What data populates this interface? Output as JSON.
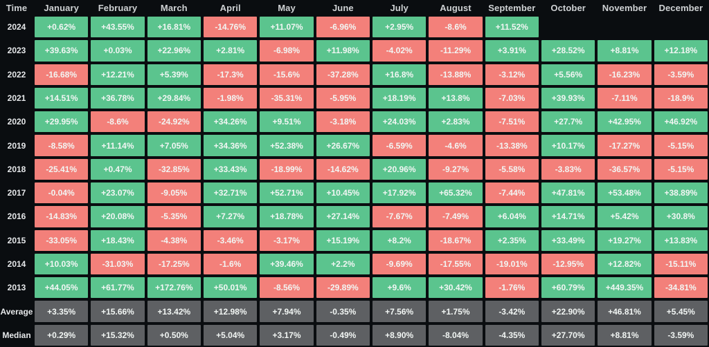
{
  "colors": {
    "background": "#0a0d10",
    "positive": "#5bc48e",
    "negative": "#f3807a",
    "summary": "#5e6063",
    "cell_text": "#f2f6f4",
    "header_text": "#cfd2d4",
    "row_label_text": "#e6e8ea"
  },
  "chart_data": {
    "type": "heatmap",
    "corner_label": "Time",
    "x_labels": [
      "January",
      "February",
      "March",
      "April",
      "May",
      "June",
      "July",
      "August",
      "September",
      "October",
      "November",
      "December"
    ],
    "y_labels": [
      "2024",
      "2023",
      "2022",
      "2021",
      "2020",
      "2019",
      "2018",
      "2017",
      "2016",
      "2015",
      "2014",
      "2013",
      "Average",
      "Median"
    ],
    "legend_position": "none",
    "grid": false,
    "rows": [
      {
        "label": "2024",
        "kind": "year",
        "values": [
          "+0.62%",
          "+43.55%",
          "+16.81%",
          "-14.76%",
          "+11.07%",
          "-6.96%",
          "+2.95%",
          "-8.6%",
          "+11.52%",
          null,
          null,
          null
        ]
      },
      {
        "label": "2023",
        "kind": "year",
        "values": [
          "+39.63%",
          "+0.03%",
          "+22.96%",
          "+2.81%",
          "-6.98%",
          "+11.98%",
          "-4.02%",
          "-11.29%",
          "+3.91%",
          "+28.52%",
          "+8.81%",
          "+12.18%"
        ]
      },
      {
        "label": "2022",
        "kind": "year",
        "values": [
          "-16.68%",
          "+12.21%",
          "+5.39%",
          "-17.3%",
          "-15.6%",
          "-37.28%",
          "+16.8%",
          "-13.88%",
          "-3.12%",
          "+5.56%",
          "-16.23%",
          "-3.59%"
        ]
      },
      {
        "label": "2021",
        "kind": "year",
        "values": [
          "+14.51%",
          "+36.78%",
          "+29.84%",
          "-1.98%",
          "-35.31%",
          "-5.95%",
          "+18.19%",
          "+13.8%",
          "-7.03%",
          "+39.93%",
          "-7.11%",
          "-18.9%"
        ]
      },
      {
        "label": "2020",
        "kind": "year",
        "values": [
          "+29.95%",
          "-8.6%",
          "-24.92%",
          "+34.26%",
          "+9.51%",
          "-3.18%",
          "+24.03%",
          "+2.83%",
          "-7.51%",
          "+27.7%",
          "+42.95%",
          "+46.92%"
        ]
      },
      {
        "label": "2019",
        "kind": "year",
        "values": [
          "-8.58%",
          "+11.14%",
          "+7.05%",
          "+34.36%",
          "+52.38%",
          "+26.67%",
          "-6.59%",
          "-4.6%",
          "-13.38%",
          "+10.17%",
          "-17.27%",
          "-5.15%"
        ]
      },
      {
        "label": "2018",
        "kind": "year",
        "values": [
          "-25.41%",
          "+0.47%",
          "-32.85%",
          "+33.43%",
          "-18.99%",
          "-14.62%",
          "+20.96%",
          "-9.27%",
          "-5.58%",
          "-3.83%",
          "-36.57%",
          "-5.15%"
        ]
      },
      {
        "label": "2017",
        "kind": "year",
        "values": [
          "-0.04%",
          "+23.07%",
          "-9.05%",
          "+32.71%",
          "+52.71%",
          "+10.45%",
          "+17.92%",
          "+65.32%",
          "-7.44%",
          "+47.81%",
          "+53.48%",
          "+38.89%"
        ]
      },
      {
        "label": "2016",
        "kind": "year",
        "values": [
          "-14.83%",
          "+20.08%",
          "-5.35%",
          "+7.27%",
          "+18.78%",
          "+27.14%",
          "-7.67%",
          "-7.49%",
          "+6.04%",
          "+14.71%",
          "+5.42%",
          "+30.8%"
        ]
      },
      {
        "label": "2015",
        "kind": "year",
        "values": [
          "-33.05%",
          "+18.43%",
          "-4.38%",
          "-3.46%",
          "-3.17%",
          "+15.19%",
          "+8.2%",
          "-18.67%",
          "+2.35%",
          "+33.49%",
          "+19.27%",
          "+13.83%"
        ]
      },
      {
        "label": "2014",
        "kind": "year",
        "values": [
          "+10.03%",
          "-31.03%",
          "-17.25%",
          "-1.6%",
          "+39.46%",
          "+2.2%",
          "-9.69%",
          "-17.55%",
          "-19.01%",
          "-12.95%",
          "+12.82%",
          "-15.11%"
        ]
      },
      {
        "label": "2013",
        "kind": "year",
        "values": [
          "+44.05%",
          "+61.77%",
          "+172.76%",
          "+50.01%",
          "-8.56%",
          "-29.89%",
          "+9.6%",
          "+30.42%",
          "-1.76%",
          "+60.79%",
          "+449.35%",
          "-34.81%"
        ]
      },
      {
        "label": "Average",
        "kind": "summary",
        "values": [
          "+3.35%",
          "+15.66%",
          "+13.42%",
          "+12.98%",
          "+7.94%",
          "-0.35%",
          "+7.56%",
          "+1.75%",
          "-3.42%",
          "+22.90%",
          "+46.81%",
          "+5.45%"
        ]
      },
      {
        "label": "Median",
        "kind": "summary",
        "values": [
          "+0.29%",
          "+15.32%",
          "+0.50%",
          "+5.04%",
          "+3.17%",
          "-0.49%",
          "+8.90%",
          "-8.04%",
          "-4.35%",
          "+27.70%",
          "+8.81%",
          "-3.59%"
        ]
      }
    ]
  }
}
